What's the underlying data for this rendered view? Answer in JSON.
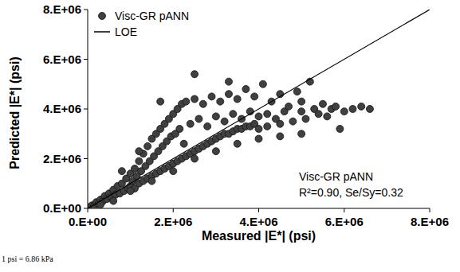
{
  "chart_data": {
    "type": "scatter",
    "x_label": "Measured |E*| (psi)",
    "y_label": "Predicted |E*| (psi)",
    "annotations": [
      "Visc-GR pANN",
      "R²=0.90, Se/Sy=0.32"
    ],
    "footnote": "1 psi = 6.86 kPa",
    "xlim": [
      0,
      8000000
    ],
    "ylim": [
      0,
      8000000
    ],
    "xticks": [
      {
        "value": 0,
        "label": "0.E+00"
      },
      {
        "value": 2000000,
        "label": "2.E+06"
      },
      {
        "value": 4000000,
        "label": "4.E+06"
      },
      {
        "value": 6000000,
        "label": "6.E+06"
      },
      {
        "value": 8000000,
        "label": "8.E+06"
      }
    ],
    "yticks": [
      {
        "value": 0,
        "label": "0.E+00"
      },
      {
        "value": 2000000,
        "label": "2.E+06"
      },
      {
        "value": 4000000,
        "label": "4.E+06"
      },
      {
        "value": 6000000,
        "label": "6.E+06"
      },
      {
        "value": 8000000,
        "label": "8.E+06"
      }
    ],
    "grid": false,
    "legend": "top-left",
    "series": [
      {
        "name": "Visc-GR pANN",
        "type": "scatter",
        "color": "#404040",
        "marker": "circle",
        "x": [
          50000,
          100000,
          150000,
          200000,
          250000,
          300000,
          350000,
          400000,
          450000,
          500000,
          550000,
          600000,
          650000,
          700000,
          750000,
          800000,
          850000,
          900000,
          950000,
          1000000,
          1000000,
          1050000,
          1100000,
          1100000,
          1150000,
          1200000,
          1200000,
          1250000,
          1300000,
          1300000,
          1350000,
          1400000,
          1400000,
          1450000,
          1500000,
          1500000,
          1550000,
          1600000,
          1600000,
          1650000,
          1700000,
          1700000,
          1750000,
          1800000,
          1800000,
          1850000,
          1900000,
          1900000,
          1950000,
          2000000,
          2000000,
          2050000,
          2100000,
          2100000,
          2150000,
          2200000,
          2200000,
          2250000,
          2300000,
          2300000,
          2400000,
          2400000,
          2500000,
          2500000,
          2600000,
          2600000,
          2700000,
          2700000,
          2800000,
          2800000,
          2900000,
          2900000,
          3000000,
          3000000,
          3100000,
          3100000,
          3200000,
          3200000,
          3300000,
          3300000,
          3400000,
          3400000,
          3500000,
          3500000,
          3600000,
          3600000,
          3700000,
          3700000,
          3800000,
          3800000,
          3900000,
          3900000,
          4000000,
          4000000,
          4100000,
          4200000,
          4200000,
          4300000,
          4400000,
          4500000,
          4500000,
          4600000,
          4700000,
          4800000,
          4900000,
          5000000,
          5000000,
          5100000,
          5200000,
          5300000,
          5400000,
          5500000,
          5600000,
          5700000,
          5800000,
          6000000,
          6200000,
          6400000,
          6600000,
          5900000,
          5000000,
          4500000,
          4000000,
          3500000,
          3000000,
          2500000,
          2000000,
          1500000,
          1000000,
          2500000,
          1200000,
          800000,
          600000,
          300000,
          3300000,
          1700000
        ],
        "values": [
          50000,
          120000,
          100000,
          250000,
          180000,
          350000,
          280000,
          500000,
          380000,
          600000,
          450000,
          750000,
          550000,
          900000,
          600000,
          1000000,
          700000,
          1200000,
          800000,
          1400000,
          900000,
          1100000,
          1600000,
          800000,
          1300000,
          1900000,
          1000000,
          1500000,
          2200000,
          1100000,
          1700000,
          2500000,
          1200000,
          1900000,
          2800000,
          1300000,
          2100000,
          3000000,
          1400000,
          2300000,
          3200000,
          1500000,
          2500000,
          3400000,
          1600000,
          2700000,
          3600000,
          1700000,
          2900000,
          3800000,
          1800000,
          3000000,
          4000000,
          1900000,
          3200000,
          4200000,
          2000000,
          2600000,
          4300000,
          2100000,
          3400000,
          2200000,
          4400000,
          2300000,
          3600000,
          2400000,
          4200000,
          2500000,
          3300000,
          2600000,
          4500000,
          2700000,
          3700000,
          2800000,
          4300000,
          2900000,
          3500000,
          3000000,
          4600000,
          3000000,
          3800000,
          3100000,
          4400000,
          3200000,
          3600000,
          3200000,
          4800000,
          3300000,
          3900000,
          3300000,
          4500000,
          3400000,
          3700000,
          3200000,
          5000000,
          3800000,
          3300000,
          4300000,
          3600000,
          4600000,
          3400000,
          3900000,
          4100000,
          3500000,
          4700000,
          3900000,
          4300000,
          3600000,
          5100000,
          4000000,
          3800000,
          4200000,
          3700000,
          4000000,
          4100000,
          3900000,
          4000000,
          4100000,
          4000000,
          3200000,
          3000000,
          2900000,
          2800000,
          2600000,
          2300000,
          2000000,
          1500000,
          1100000,
          700000,
          5400000,
          2300000,
          1500000,
          300000,
          150000,
          5100000,
          4300000
        ]
      },
      {
        "name": "LOE",
        "type": "line",
        "color": "#000000",
        "line_style": "solid",
        "x": [
          0,
          8000000
        ],
        "values": [
          0,
          8000000
        ]
      }
    ]
  }
}
